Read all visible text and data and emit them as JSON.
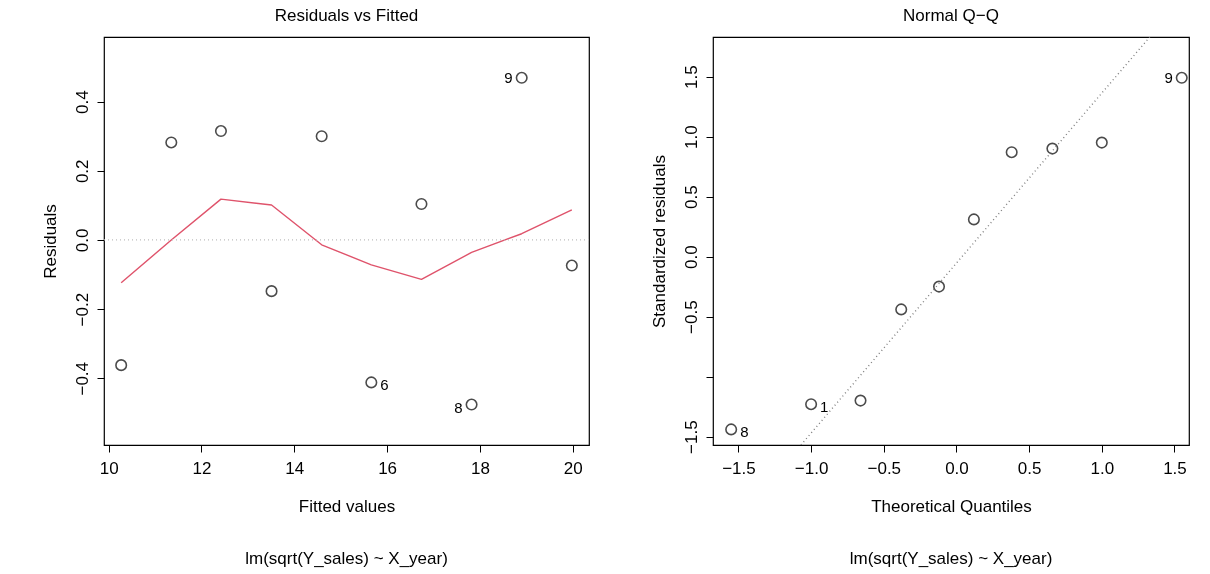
{
  "chart_data": [
    {
      "type": "scatter",
      "title": "Residuals vs Fitted",
      "xlabel": "Fitted values",
      "ylabel": "Residuals",
      "xlim": [
        9.9,
        20.35
      ],
      "ylim": [
        -0.593,
        0.587
      ],
      "xticks": [
        10,
        12,
        14,
        16,
        18,
        20
      ],
      "yticks": [
        {
          "value": -0.4,
          "label": "−0.4"
        },
        {
          "value": -0.2,
          "label": "−0.2"
        },
        {
          "value": 0,
          "label": "0.0"
        },
        {
          "value": 0.2,
          "label": "0.2"
        },
        {
          "value": 0.4,
          "label": "0.4"
        }
      ],
      "grid": false,
      "series": [
        {
          "color": "#000000",
          "marker": "circle",
          "x": [
            10.27,
            11.35,
            12.42,
            13.51,
            14.59,
            15.66,
            16.74,
            17.82,
            18.9,
            19.98
          ],
          "values": [
            -0.362,
            0.282,
            0.315,
            -0.148,
            0.3,
            -0.412,
            0.104,
            -0.476,
            0.469,
            -0.074
          ]
        },
        {
          "type": "line",
          "color": "#df536b",
          "marker": "none",
          "line_style": "solid",
          "x": [
            10.27,
            11.35,
            12.42,
            13.51,
            14.59,
            15.66,
            16.74,
            17.82,
            18.9,
            19.98
          ],
          "values": [
            -0.124,
            0.0,
            0.118,
            0.101,
            -0.014,
            -0.072,
            -0.114,
            -0.036,
            0.018,
            0.087
          ]
        }
      ],
      "ref_lines": [
        {
          "axis": "y",
          "value": 0,
          "color": "#bebebe",
          "line_style": "dotted"
        }
      ],
      "annotations": [
        {
          "text": "6",
          "x": 15.66,
          "y": -0.412
        },
        {
          "text": "8",
          "x": 17.82,
          "y": -0.476
        },
        {
          "text": "9",
          "x": 18.9,
          "y": 0.469
        },
        "lm(sqrt(Y_sales) ~ X_year)"
      ]
    },
    {
      "type": "scatter",
      "title": "Normal Q−Q",
      "xlabel": "Theoretical Quantiles",
      "ylabel": "Standardized residuals",
      "xlim": [
        -1.675,
        1.6
      ],
      "ylim": [
        -1.57,
        1.83
      ],
      "xticks": [
        {
          "value": -1.5,
          "label": "−1.5"
        },
        {
          "value": -1,
          "label": "−1.0"
        },
        {
          "value": -0.5,
          "label": "−0.5"
        },
        {
          "value": 0,
          "label": "0.0"
        },
        {
          "value": 0.5,
          "label": "0.5"
        },
        {
          "value": 1,
          "label": "1.0"
        },
        {
          "value": 1.5,
          "label": "1.5"
        }
      ],
      "yticks": [
        {
          "value": -1.5,
          "label": "−1.5"
        },
        {
          "value": -1,
          "label": null
        },
        {
          "value": -0.5,
          "label": "−0.5"
        },
        {
          "value": 0,
          "label": "0.0"
        },
        {
          "value": 0.5,
          "label": "0.5"
        },
        {
          "value": 1,
          "label": "1.0"
        },
        {
          "value": 1.5,
          "label": "1.5"
        }
      ],
      "grid": false,
      "series": [
        {
          "color": "#000000",
          "marker": "circle",
          "x": [
            -1.55,
            -1.0,
            -0.66,
            -0.38,
            -0.12,
            0.12,
            0.38,
            0.66,
            1.0,
            1.55
          ],
          "values": [
            -1.44,
            -1.23,
            -1.2,
            -0.44,
            -0.25,
            0.31,
            0.87,
            0.9,
            0.95,
            1.49
          ]
        },
        {
          "type": "line",
          "color": "#808080",
          "marker": "none",
          "line_style": "dotted",
          "x": [
            -1.07,
            1.33
          ],
          "values": [
            -1.57,
            1.83
          ]
        }
      ],
      "annotations": [
        {
          "text": "8",
          "x": -1.55,
          "y": -1.44
        },
        {
          "text": "1",
          "x": -1.0,
          "y": -1.23
        },
        {
          "text": "9",
          "x": 1.55,
          "y": 1.49
        },
        "lm(sqrt(Y_sales) ~ X_year)"
      ]
    }
  ]
}
